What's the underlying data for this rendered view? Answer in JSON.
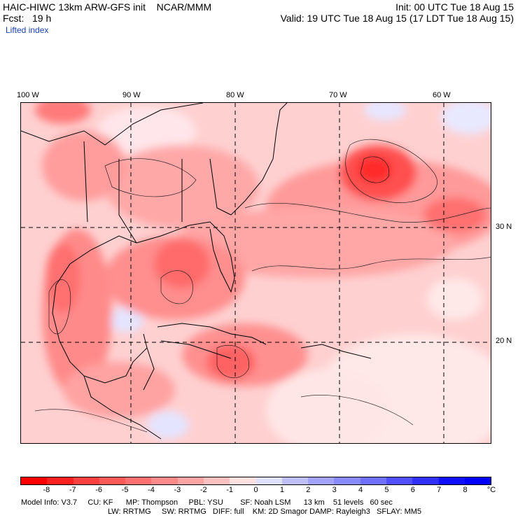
{
  "header": {
    "title": "HAIC-HIWC 13km ARW-GFS init    NCAR/MMM",
    "fcst": "Fcst:   19 h",
    "init": "Init: 00 UTC Tue 18 Aug 15",
    "valid": "Valid: 19 UTC Tue 18 Aug 15 (17 LDT Tue 18 Aug 15)",
    "field": "Lifted index"
  },
  "map": {
    "lon_labels": [
      "100 W",
      "90 W",
      "80 W",
      "70 W",
      "60 W"
    ],
    "lat_labels": [
      "30 N",
      "20 N"
    ],
    "colors": {
      "strong_neg": "#ff1a1a",
      "mid_neg": "#ff8080",
      "weak_neg": "#ffc8c8",
      "near_zero": "#ffffff",
      "pos": "#c8c8ff",
      "land_line": "#000000"
    }
  },
  "colorbar": {
    "tick_labels": [
      "-8",
      "-7",
      "-6",
      "-5",
      "-4",
      "-3",
      "-2",
      "-1",
      "0",
      "1",
      "2",
      "3",
      "4",
      "5",
      "6",
      "7",
      "8"
    ],
    "unit": "°C",
    "colors": [
      "#ff0000",
      "#ff2020",
      "#ff4040",
      "#ff5a5a",
      "#ff7070",
      "#ff8a8a",
      "#ffa4a4",
      "#ffc0c0",
      "#ffe0e0",
      "#e0e0ff",
      "#c0c0ff",
      "#a4a4ff",
      "#8a8aff",
      "#7070ff",
      "#5050ff",
      "#3030ff",
      "#1010ff",
      "#0000ff"
    ]
  },
  "model_info": {
    "line1": "Model Info: V3.7     CU: KF      MP: Thompson     PBL: YSU        SF: Noah LSM      13 km    51 levels   60 sec",
    "line2": "LW: RRTMG     SW: RRTMG   DIFF: full    KM: 2D Smagor DAMP: Rayleigh3   SFLAY: MM5"
  }
}
